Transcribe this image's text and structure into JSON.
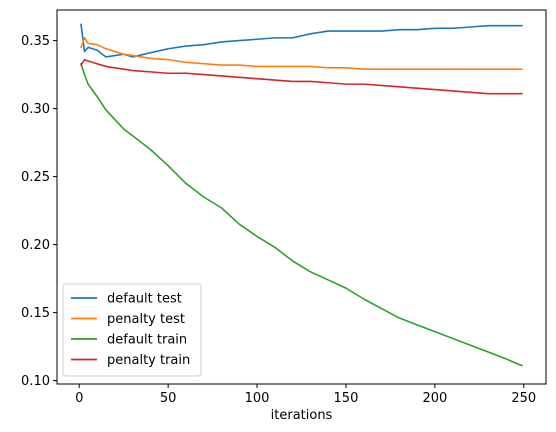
{
  "chart_data": {
    "type": "line",
    "title": "",
    "xlabel": "iterations",
    "ylabel": "",
    "xlim": [
      -12.5,
      262.5
    ],
    "ylim": [
      0.0975,
      0.3725
    ],
    "xticks": [
      0,
      50,
      100,
      150,
      200,
      250
    ],
    "xtick_labels": [
      "0",
      "50",
      "100",
      "150",
      "200",
      "250"
    ],
    "yticks": [
      0.1,
      0.15,
      0.2,
      0.25,
      0.3,
      0.35
    ],
    "ytick_labels": [
      "0.10",
      "0.15",
      "0.20",
      "0.25",
      "0.30",
      "0.35"
    ],
    "grid": false,
    "legend_position": "lower-left",
    "x": [
      1,
      3,
      5,
      10,
      15,
      20,
      25,
      30,
      40,
      50,
      60,
      70,
      80,
      90,
      100,
      110,
      120,
      130,
      140,
      150,
      160,
      170,
      180,
      190,
      200,
      210,
      220,
      230,
      240,
      249
    ],
    "series": [
      {
        "name": "default test",
        "color": "#1f77b4",
        "values": [
          0.362,
          0.342,
          0.345,
          0.343,
          0.338,
          0.339,
          0.34,
          0.338,
          0.341,
          0.344,
          0.346,
          0.347,
          0.349,
          0.35,
          0.351,
          0.352,
          0.352,
          0.355,
          0.357,
          0.357,
          0.357,
          0.357,
          0.358,
          0.358,
          0.359,
          0.359,
          0.36,
          0.361,
          0.361,
          0.361
        ]
      },
      {
        "name": "penalty test",
        "color": "#ff7f0e",
        "values": [
          0.345,
          0.352,
          0.348,
          0.347,
          0.344,
          0.342,
          0.34,
          0.339,
          0.337,
          0.336,
          0.334,
          0.333,
          0.332,
          0.332,
          0.331,
          0.331,
          0.331,
          0.331,
          0.33,
          0.33,
          0.329,
          0.329,
          0.329,
          0.329,
          0.329,
          0.329,
          0.329,
          0.329,
          0.329,
          0.329
        ]
      },
      {
        "name": "default train",
        "color": "#2ca02c",
        "values": [
          0.333,
          0.325,
          0.318,
          0.309,
          0.299,
          0.292,
          0.285,
          0.28,
          0.27,
          0.258,
          0.245,
          0.235,
          0.227,
          0.215,
          0.206,
          0.198,
          0.188,
          0.18,
          0.174,
          0.168,
          0.16,
          0.153,
          0.146,
          0.141,
          0.136,
          0.131,
          0.126,
          0.121,
          0.116,
          0.111
        ]
      },
      {
        "name": "penalty train",
        "color": "#d62728",
        "values": [
          0.332,
          0.336,
          0.335,
          0.333,
          0.331,
          0.33,
          0.329,
          0.328,
          0.327,
          0.326,
          0.326,
          0.325,
          0.324,
          0.323,
          0.322,
          0.321,
          0.32,
          0.32,
          0.319,
          0.318,
          0.318,
          0.317,
          0.316,
          0.315,
          0.314,
          0.313,
          0.312,
          0.311,
          0.311,
          0.311
        ]
      }
    ]
  }
}
